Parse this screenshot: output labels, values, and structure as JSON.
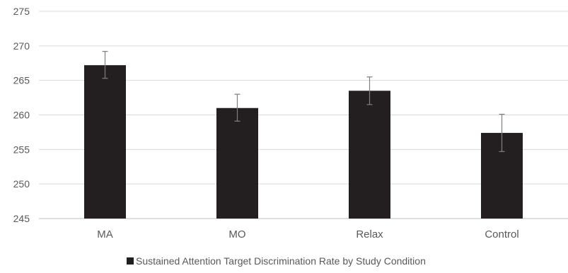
{
  "chart_data": {
    "type": "bar",
    "categories": [
      "MA",
      "MO",
      "Relax",
      "Control"
    ],
    "series": [
      {
        "name": "Sustained Attention Target Discrimination Rate by Study Condition",
        "values": [
          267.2,
          261.0,
          263.5,
          257.4
        ],
        "error_low": [
          265.3,
          259.1,
          261.5,
          254.7
        ],
        "error_high": [
          269.2,
          263.0,
          265.5,
          260.1
        ]
      }
    ],
    "title": "",
    "xlabel": "",
    "ylabel": "",
    "ylim": [
      245,
      275
    ],
    "yticks": [
      245,
      250,
      255,
      260,
      265,
      270,
      275
    ],
    "grid": true,
    "legend": "bottom-center",
    "colors": {
      "bar": "#231f20",
      "grid": "#d9d9d9",
      "axis": "#bfbfbf",
      "text": "#595959",
      "error": "#7f7f7f"
    }
  }
}
